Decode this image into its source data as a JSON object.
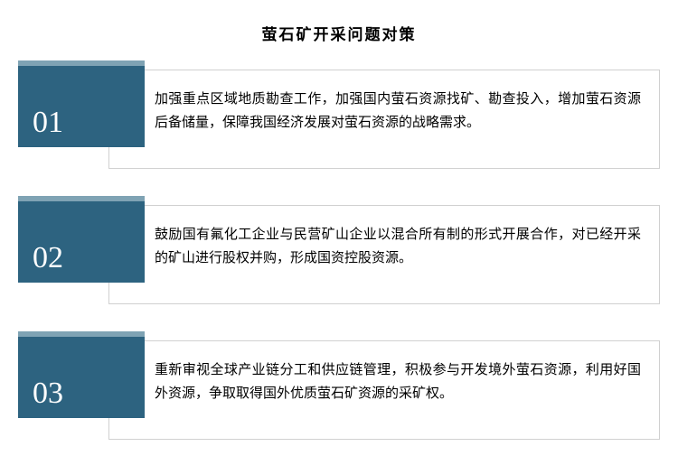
{
  "title": "萤石矿开采问题对策",
  "title_fontsize": 17,
  "title_color": "#000000",
  "items": [
    {
      "number": "01",
      "text": "加强重点区域地质勘查工作，加强国内萤石资源找矿、勘查投入，增加萤石资源后备储量，保障我国经济发展对萤石资源的战略需求。"
    },
    {
      "number": "02",
      "text": "鼓励国有氟化工企业与民营矿山企业以混合所有制的形式开展合作，对已经开采的矿山进行股权并购，形成国资控股资源。"
    },
    {
      "number": "03",
      "text": "重新审视全球产业链分工和供应链管理，积极参与开发境外萤石资源，利用好国外资源，争取取得国外优质萤石矿资源的采矿权。"
    }
  ],
  "style": {
    "background_color": "#ffffff",
    "body_font_color": "#000000",
    "body_fontsize": 15,
    "number_block_bg": "#2d6380",
    "number_block_accent": "#7fa3b4",
    "number_color": "#ffffff",
    "number_fontsize": 34,
    "content_border_color": "#d0d0d0",
    "content_bg": "#ffffff"
  }
}
